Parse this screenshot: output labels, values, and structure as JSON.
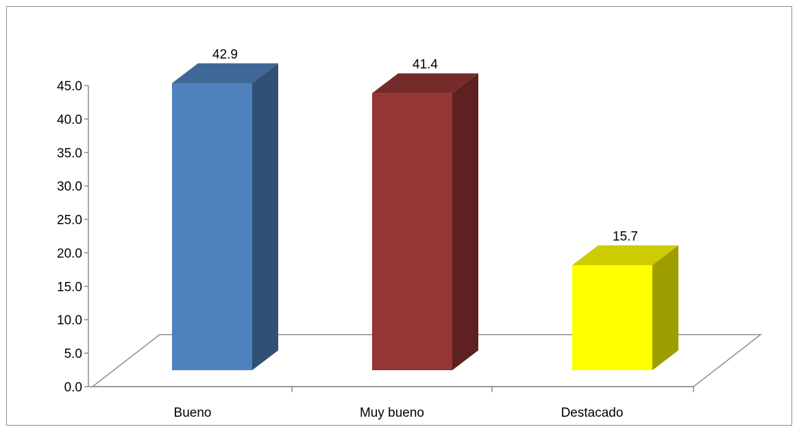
{
  "chart_data": {
    "type": "bar",
    "style": "3d-column",
    "categories": [
      "Bueno",
      "Muy bueno",
      "Destacado"
    ],
    "values": [
      42.9,
      41.4,
      15.7
    ],
    "data_labels": [
      "42.9",
      "41.4",
      "15.7"
    ],
    "colors": [
      "#4f81bd",
      "#943634",
      "#ffff00"
    ],
    "y_ticks": [
      "0.0",
      "5.0",
      "10.0",
      "15.0",
      "20.0",
      "25.0",
      "30.0",
      "35.0",
      "40.0",
      "45.0"
    ],
    "ylim": [
      0,
      45
    ],
    "title": "",
    "xlabel": "",
    "ylabel": "",
    "grid": false,
    "legend": "none"
  }
}
